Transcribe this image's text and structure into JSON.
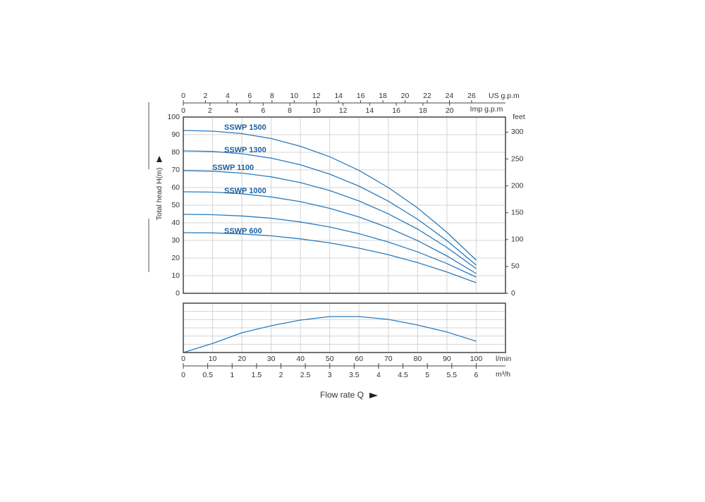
{
  "chart_data": [
    {
      "type": "line",
      "y_label": "Total head H(m)",
      "x": [
        0,
        10,
        20,
        30,
        40,
        50,
        60,
        70,
        80,
        90,
        100
      ],
      "xlim": [
        0,
        110
      ],
      "ylim": [
        0,
        100
      ],
      "yticks": [
        0,
        10,
        20,
        30,
        40,
        50,
        60,
        70,
        80,
        90,
        100
      ],
      "y2_label": "feet",
      "y2lim": [
        0,
        328.1
      ],
      "y2ticks": [
        0,
        50,
        100,
        150,
        200,
        250,
        300
      ],
      "top_axes": [
        {
          "label": "US g.p.m",
          "lim": [
            0,
            29.06
          ],
          "ticks": [
            0,
            2,
            4,
            6,
            8,
            10,
            12,
            14,
            16,
            18,
            20,
            22,
            24,
            26
          ]
        },
        {
          "label": "Imp g.p.m",
          "lim": [
            0,
            24.2
          ],
          "ticks": [
            0,
            2,
            4,
            6,
            8,
            10,
            12,
            14,
            16,
            18,
            20
          ]
        }
      ],
      "grid": true,
      "color": "#2b7bbd",
      "series": [
        {
          "name": "SSWP 1500",
          "values": [
            92.4,
            92.0,
            90.6,
            87.8,
            83.4,
            77.5,
            69.7,
            60.0,
            48.4,
            34.6,
            18.8
          ]
        },
        {
          "name": "SSWP 1300",
          "values": [
            80.8,
            80.5,
            79.2,
            76.7,
            72.9,
            67.6,
            60.8,
            52.3,
            42.0,
            29.9,
            16.0
          ]
        },
        {
          "name": "SSWP 1100",
          "values": [
            69.6,
            69.3,
            68.2,
            66.1,
            62.8,
            58.3,
            52.4,
            45.1,
            36.4,
            26.0,
            14.0
          ]
        },
        {
          "name": "SSWP 1000",
          "values": [
            57.6,
            57.4,
            56.5,
            54.7,
            52.0,
            48.2,
            43.3,
            37.2,
            29.9,
            21.2,
            11.2
          ]
        },
        {
          "name": null,
          "values": [
            44.8,
            44.6,
            43.9,
            42.6,
            40.5,
            37.6,
            33.8,
            29.1,
            23.5,
            16.9,
            9.2
          ]
        },
        {
          "name": "SSWP 600",
          "values": [
            34.4,
            34.3,
            33.7,
            32.6,
            30.9,
            28.6,
            25.6,
            21.9,
            17.4,
            12.1,
            6.0
          ]
        }
      ]
    },
    {
      "type": "line",
      "x": [
        0,
        10,
        20,
        30,
        40,
        50,
        60,
        70,
        80,
        90,
        100
      ],
      "xlim": [
        0,
        110
      ],
      "xticks": [
        0,
        10,
        20,
        30,
        40,
        50,
        60,
        70,
        80,
        90,
        100
      ],
      "x_unit": "l/min",
      "x2_unit": "m³/h",
      "x2lim": [
        0,
        6.6
      ],
      "x2ticks": [
        0,
        0.5,
        1,
        1.5,
        2,
        2.5,
        3,
        3.5,
        4,
        4.5,
        5,
        5.5,
        6
      ],
      "x_label": "Flow rate Q",
      "ylim": [
        0,
        60
      ],
      "grid": true,
      "color": "#2b7bbd",
      "values": [
        0,
        11.1,
        24.0,
        32.6,
        39.4,
        43.7,
        43.7,
        40.3,
        33.4,
        24.9,
        13.7
      ]
    }
  ]
}
